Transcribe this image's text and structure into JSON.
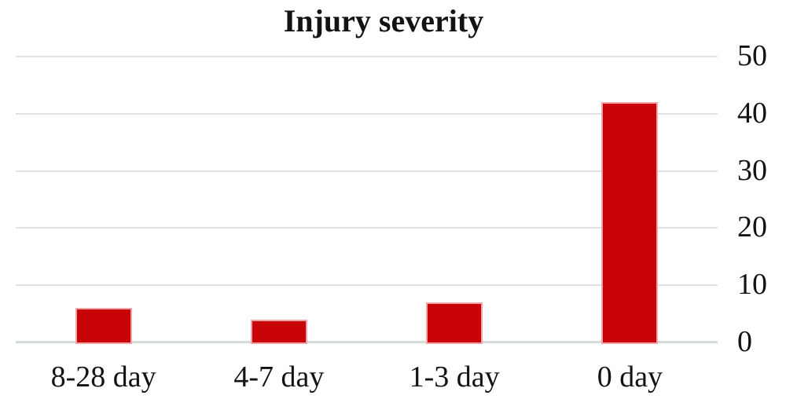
{
  "chart_data": {
    "type": "bar",
    "title": "Injury severity",
    "categories": [
      "8-28 day",
      "4-7 day",
      "1-3 day",
      "0 day"
    ],
    "values": [
      6,
      4,
      7,
      42
    ],
    "xlabel": "",
    "ylabel": "",
    "ylim": [
      0,
      50
    ],
    "yticks": [
      0,
      10,
      20,
      30,
      40,
      50
    ],
    "y_axis_side": "right",
    "grid": true,
    "legend": false,
    "bar_color": "#c90408",
    "bar_edge_color": "#f3a3a8",
    "gridline_color": "#dde4e0",
    "axis_line_color": "#d3dcd7",
    "text_color": "#141312",
    "background": "#ffffff"
  }
}
